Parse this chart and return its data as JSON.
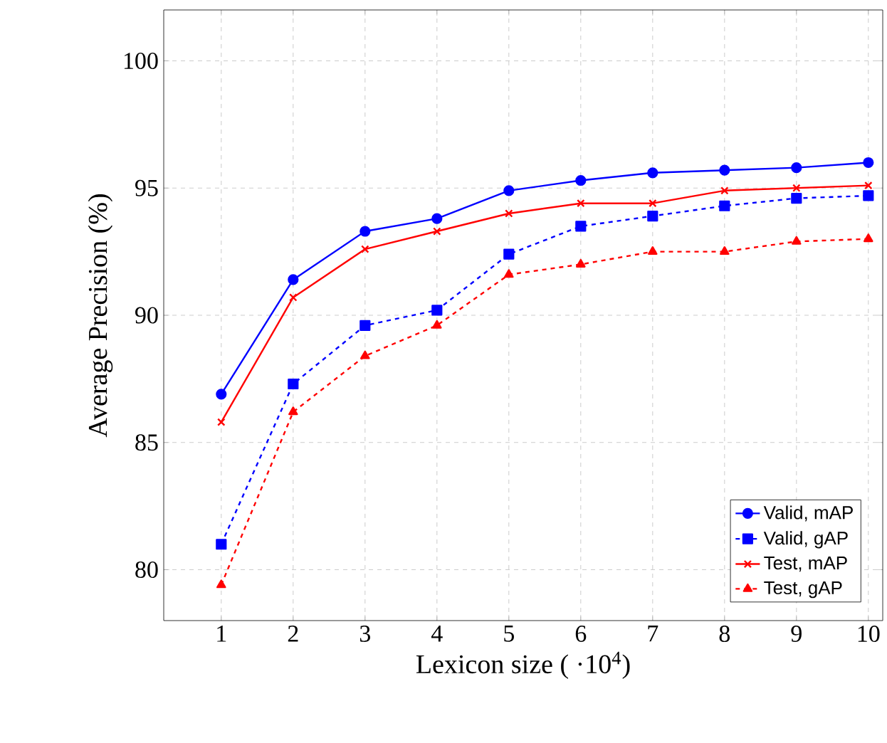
{
  "chart_data": {
    "type": "line",
    "xlabel": "Lexicon size ( ·10$^{4}$)",
    "ylabel": "Average Precision (%)",
    "x": [
      1,
      2,
      3,
      4,
      5,
      6,
      7,
      8,
      9,
      10
    ],
    "xlim": [
      0.2,
      10.2
    ],
    "ylim": [
      78,
      102
    ],
    "xticks": [
      1,
      2,
      3,
      4,
      5,
      6,
      7,
      8,
      9,
      10
    ],
    "yticks": [
      80,
      85,
      90,
      95,
      100
    ],
    "grid": true,
    "legend": "bottom right",
    "series": [
      {
        "name": "Valid, mAP",
        "color": "#0000ff",
        "marker": "circle",
        "line_style": "solid",
        "values": [
          86.9,
          91.4,
          93.3,
          93.8,
          94.9,
          95.3,
          95.6,
          95.7,
          95.8,
          96.0
        ]
      },
      {
        "name": "Valid, gAP",
        "color": "#0000ff",
        "marker": "square",
        "line_style": "dashed",
        "values": [
          81.0,
          87.3,
          89.6,
          90.2,
          92.4,
          93.5,
          93.9,
          94.3,
          94.6,
          94.7
        ]
      },
      {
        "name": "Test, mAP",
        "color": "#ff0000",
        "marker": "cross",
        "line_style": "solid",
        "values": [
          85.8,
          90.7,
          92.6,
          93.3,
          94.0,
          94.4,
          94.4,
          94.9,
          95.0,
          95.1
        ]
      },
      {
        "name": "Test, gAP",
        "color": "#ff0000",
        "marker": "triangle",
        "line_style": "dashed",
        "values": [
          79.4,
          86.2,
          88.4,
          89.6,
          91.6,
          92.0,
          92.5,
          92.5,
          92.9,
          93.0
        ]
      }
    ]
  }
}
